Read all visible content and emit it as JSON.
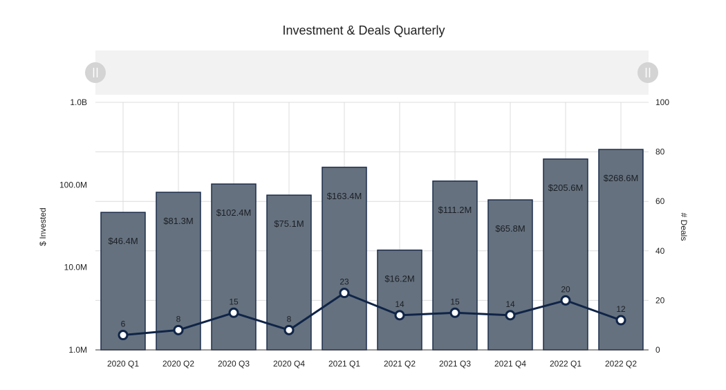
{
  "chart_data": {
    "type": "bar",
    "title": "Investment & Deals Quarterly",
    "categories": [
      "2020 Q1",
      "2020 Q2",
      "2020 Q3",
      "2020 Q4",
      "2021 Q1",
      "2021 Q2",
      "2021 Q3",
      "2021 Q4",
      "2022 Q1",
      "2022 Q2"
    ],
    "left_axis": {
      "label": "$ Invested",
      "scale": "log",
      "range": [
        1000000,
        1000000000
      ],
      "ticks": [
        {
          "value": 1000000,
          "label": "1.0M"
        },
        {
          "value": 10000000,
          "label": "10.0M"
        },
        {
          "value": 100000000,
          "label": "100.0M"
        },
        {
          "value": 1000000000,
          "label": "1.0B"
        }
      ]
    },
    "right_axis": {
      "label": "# Deals",
      "scale": "linear",
      "range": [
        0,
        100
      ],
      "ticks": [
        {
          "value": 0,
          "label": "0"
        },
        {
          "value": 20,
          "label": "20"
        },
        {
          "value": 40,
          "label": "40"
        },
        {
          "value": 60,
          "label": "60"
        },
        {
          "value": 80,
          "label": "80"
        },
        {
          "value": 100,
          "label": "100"
        }
      ]
    },
    "series": [
      {
        "type": "bar",
        "axis": "left",
        "values": [
          46400000,
          81300000,
          102400000,
          75100000,
          163400000,
          16200000,
          111200000,
          65800000,
          205600000,
          268600000
        ],
        "labels": [
          "$46.4M",
          "$81.3M",
          "$102.4M",
          "$75.1M",
          "$163.4M",
          "$16.2M",
          "$111.2M",
          "$65.8M",
          "$205.6M",
          "$268.6M"
        ],
        "color": "#65717e",
        "border_color": "#1c2d4a"
      },
      {
        "type": "line",
        "axis": "right",
        "values": [
          6,
          8,
          15,
          8,
          23,
          14,
          15,
          14,
          20,
          12
        ],
        "labels": [
          "6",
          "8",
          "15",
          "8",
          "23",
          "14",
          "15",
          "14",
          "20",
          "12"
        ],
        "color": "#0f2447",
        "marker_fill": "#ffffff"
      }
    ],
    "grid": true,
    "legend": "none"
  },
  "navigator": {
    "background": "#f2f2f2",
    "handle_color": "#d4d4d4"
  }
}
